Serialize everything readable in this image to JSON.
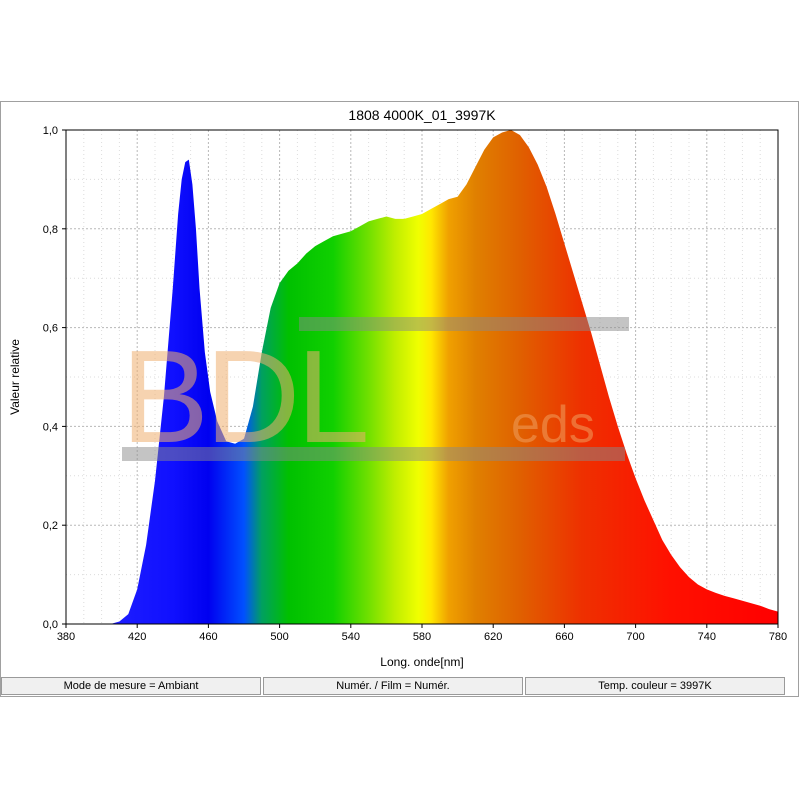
{
  "chart_data": {
    "type": "area",
    "title": "1808 4000K_01_3997K",
    "xlabel": "Long. onde[nm]",
    "ylabel": "Valeur relative",
    "xlim": [
      380,
      780
    ],
    "ylim": [
      0,
      1.0
    ],
    "x_ticks": [
      "380",
      "420",
      "460",
      "500",
      "540",
      "580",
      "620",
      "660",
      "700",
      "740",
      "780"
    ],
    "y_ticks": [
      "0,0",
      "0,2",
      "0,4",
      "0,6",
      "0,8",
      "1,0"
    ],
    "grid": true,
    "series": [
      {
        "x": [
          400,
          405,
          410,
          415,
          420,
          425,
          430,
          435,
          440,
          443,
          445,
          447,
          449,
          451,
          453,
          455,
          458,
          461,
          465,
          470,
          475,
          480,
          485,
          490,
          495,
          500,
          505,
          510,
          515,
          520,
          525,
          530,
          535,
          540,
          545,
          550,
          555,
          560,
          565,
          570,
          575,
          580,
          585,
          590,
          595,
          600,
          605,
          610,
          615,
          620,
          625,
          630,
          635,
          640,
          645,
          650,
          655,
          660,
          665,
          670,
          675,
          680,
          685,
          690,
          695,
          700,
          705,
          710,
          715,
          720,
          725,
          730,
          735,
          740,
          745,
          750,
          755,
          760,
          765,
          770,
          775,
          780
        ],
        "y": [
          0.0,
          0.0,
          0.005,
          0.02,
          0.07,
          0.16,
          0.29,
          0.46,
          0.68,
          0.83,
          0.9,
          0.935,
          0.94,
          0.89,
          0.8,
          0.68,
          0.55,
          0.47,
          0.41,
          0.37,
          0.365,
          0.375,
          0.44,
          0.55,
          0.64,
          0.69,
          0.715,
          0.73,
          0.75,
          0.765,
          0.775,
          0.785,
          0.79,
          0.795,
          0.805,
          0.815,
          0.82,
          0.825,
          0.82,
          0.82,
          0.825,
          0.83,
          0.84,
          0.85,
          0.86,
          0.865,
          0.89,
          0.925,
          0.96,
          0.985,
          0.995,
          1.0,
          0.99,
          0.965,
          0.93,
          0.885,
          0.83,
          0.77,
          0.71,
          0.65,
          0.59,
          0.525,
          0.46,
          0.4,
          0.345,
          0.295,
          0.25,
          0.21,
          0.17,
          0.14,
          0.115,
          0.095,
          0.08,
          0.07,
          0.063,
          0.057,
          0.052,
          0.047,
          0.042,
          0.037,
          0.03,
          0.025
        ]
      }
    ]
  },
  "watermark": {
    "text_main": "BDL",
    "text_sub": "eds"
  },
  "status_bar": {
    "mode": "Mode de mesure = Ambiant",
    "film": "Numér. / Film = Numér.",
    "temp": "Temp. couleur = 3997K"
  }
}
